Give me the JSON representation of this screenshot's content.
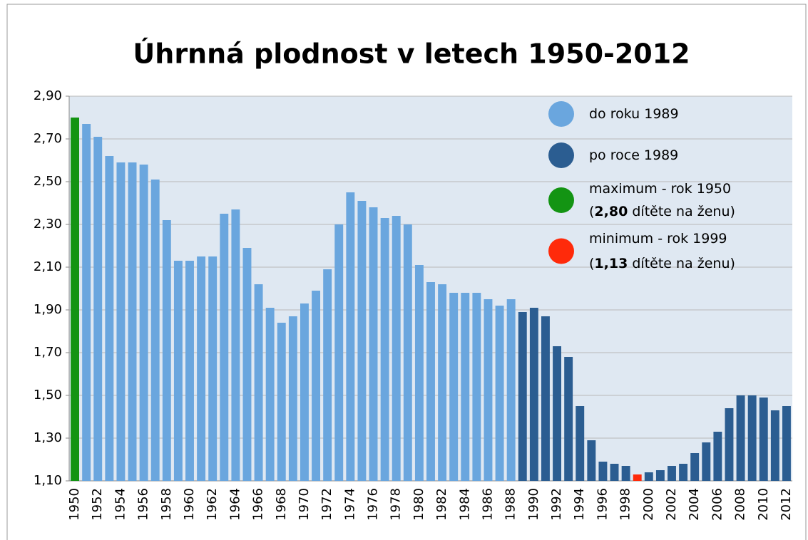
{
  "chart_data": {
    "type": "bar",
    "title": "Úhrnná plodnost v letech 1950-2012",
    "categories": [
      "1950",
      null,
      "1952",
      null,
      "1954",
      null,
      "1956",
      null,
      "1958",
      null,
      "1960",
      null,
      "1962",
      null,
      "1964",
      null,
      "1966",
      null,
      "1968",
      null,
      "1970",
      null,
      "1972",
      null,
      "1974",
      null,
      "1976",
      null,
      "1978",
      null,
      "1980",
      null,
      "1982",
      null,
      "1984",
      null,
      "1986",
      null,
      "1988",
      null,
      "1990",
      null,
      "1992",
      null,
      "1994",
      null,
      "1996",
      null,
      "1998",
      null,
      "2000",
      null,
      "2002",
      null,
      "2004",
      null,
      "2006",
      null,
      "2008",
      null,
      "2010",
      null,
      "2012"
    ],
    "values": [
      2.8,
      2.77,
      2.71,
      2.62,
      2.59,
      2.59,
      2.58,
      2.51,
      2.32,
      2.13,
      2.13,
      2.15,
      2.15,
      2.35,
      2.37,
      2.19,
      2.02,
      1.91,
      1.84,
      1.87,
      1.93,
      1.99,
      2.09,
      2.3,
      2.45,
      2.41,
      2.38,
      2.33,
      2.34,
      2.3,
      2.11,
      2.03,
      2.02,
      1.98,
      1.98,
      1.98,
      1.95,
      1.92,
      1.95,
      1.89,
      1.91,
      1.87,
      1.73,
      1.68,
      1.45,
      1.29,
      1.19,
      1.18,
      1.17,
      1.13,
      1.14,
      1.15,
      1.17,
      1.18,
      1.23,
      1.28,
      1.33,
      1.44,
      1.5,
      1.5,
      1.49,
      1.43,
      1.45
    ],
    "colors": [
      "#139413",
      "#6aa6de",
      "#6aa6de",
      "#6aa6de",
      "#6aa6de",
      "#6aa6de",
      "#6aa6de",
      "#6aa6de",
      "#6aa6de",
      "#6aa6de",
      "#6aa6de",
      "#6aa6de",
      "#6aa6de",
      "#6aa6de",
      "#6aa6de",
      "#6aa6de",
      "#6aa6de",
      "#6aa6de",
      "#6aa6de",
      "#6aa6de",
      "#6aa6de",
      "#6aa6de",
      "#6aa6de",
      "#6aa6de",
      "#6aa6de",
      "#6aa6de",
      "#6aa6de",
      "#6aa6de",
      "#6aa6de",
      "#6aa6de",
      "#6aa6de",
      "#6aa6de",
      "#6aa6de",
      "#6aa6de",
      "#6aa6de",
      "#6aa6de",
      "#6aa6de",
      "#6aa6de",
      "#6aa6de",
      "#2b5d91",
      "#2b5d91",
      "#2b5d91",
      "#2b5d91",
      "#2b5d91",
      "#2b5d91",
      "#2b5d91",
      "#2b5d91",
      "#2b5d91",
      "#2b5d91",
      "#ff2a0a",
      "#2b5d91",
      "#2b5d91",
      "#2b5d91",
      "#2b5d91",
      "#2b5d91",
      "#2b5d91",
      "#2b5d91",
      "#2b5d91",
      "#2b5d91",
      "#2b5d91",
      "#2b5d91",
      "#2b5d91",
      "#2b5d91"
    ],
    "ylim": [
      1.1,
      2.9
    ],
    "yticks": [
      {
        "value": 1.1,
        "label": "1,10"
      },
      {
        "value": 1.3,
        "label": "1,30"
      },
      {
        "value": 1.5,
        "label": "1,50"
      },
      {
        "value": 1.7,
        "label": "1,70"
      },
      {
        "value": 1.9,
        "label": "1,90"
      },
      {
        "value": 2.1,
        "label": "2,10"
      },
      {
        "value": 2.3,
        "label": "2,30"
      },
      {
        "value": 2.5,
        "label": "2,50"
      },
      {
        "value": 2.7,
        "label": "2,70"
      },
      {
        "value": 2.9,
        "label": "2,90"
      }
    ],
    "grid": true,
    "legend": [
      {
        "color": "#6aa6de",
        "lines": [
          [
            {
              "text": "do roku 1989"
            }
          ]
        ]
      },
      {
        "color": "#2b5d91",
        "lines": [
          [
            {
              "text": "po roce 1989"
            }
          ]
        ]
      },
      {
        "color": "#139413",
        "lines": [
          [
            {
              "text": "maximum - rok 1950"
            }
          ],
          [
            {
              "text": "("
            },
            {
              "text": "2,80",
              "bold": true
            },
            {
              "text": " dítěte na ženu)"
            }
          ]
        ]
      },
      {
        "color": "#ff2a0a",
        "lines": [
          [
            {
              "text": "minimum - rok 1999"
            }
          ],
          [
            {
              "text": "("
            },
            {
              "text": "1,13",
              "bold": true
            },
            {
              "text": " dítěte na ženu)"
            }
          ]
        ]
      }
    ]
  }
}
